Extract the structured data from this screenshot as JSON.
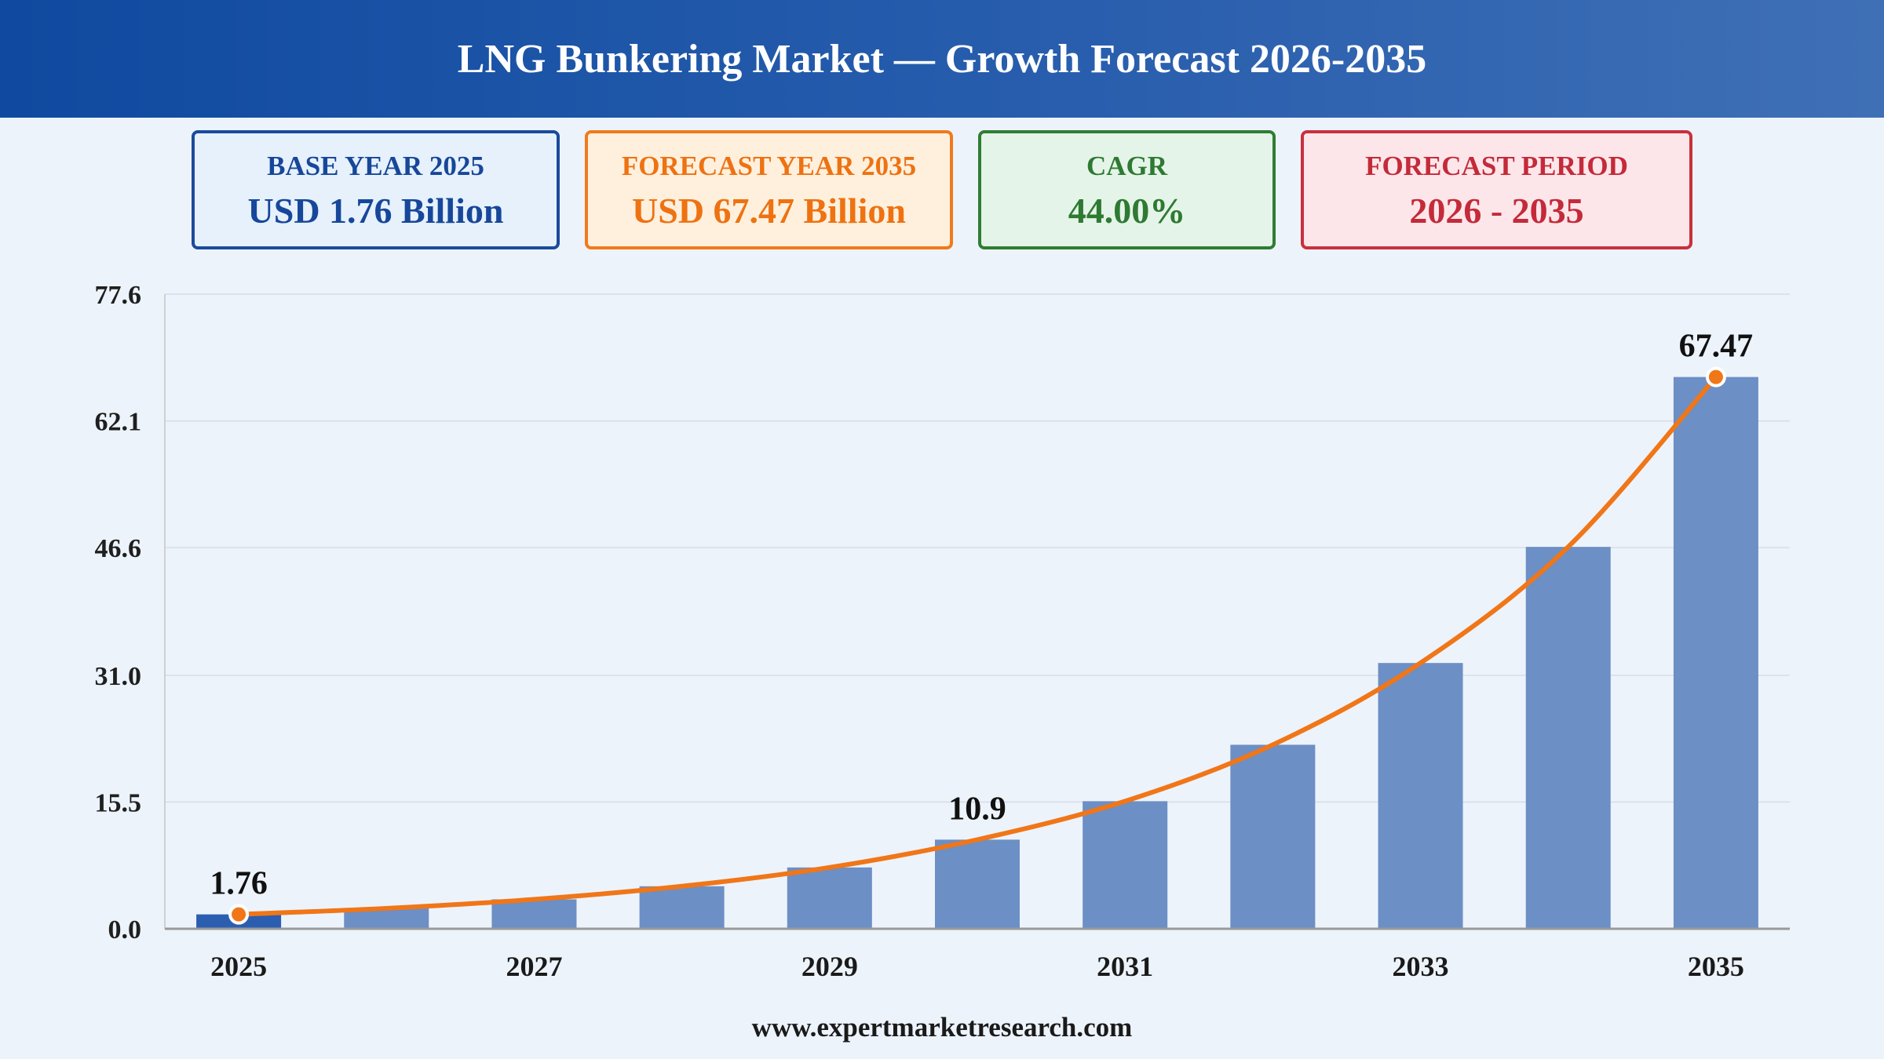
{
  "header": {
    "title": "LNG Bunkering Market — Growth Forecast 2026-2035"
  },
  "cards": {
    "base": {
      "label": "BASE YEAR 2025",
      "value": "USD 1.76 Billion"
    },
    "forecast": {
      "label": "FORECAST YEAR 2035",
      "value": "USD 67.47 Billion"
    },
    "cagr": {
      "label": "CAGR",
      "value": "44.00%"
    },
    "period": {
      "label": "FORECAST PERIOD",
      "value": "2026 - 2035"
    }
  },
  "colors": {
    "bar": "#6c8fc5",
    "bar_base": "#2b5eb0",
    "line": "#f07618",
    "grid": "#d5dde8",
    "axis": "#9a9a9a"
  },
  "chart_data": {
    "type": "bar",
    "categories": [
      "2025",
      "2026",
      "2027",
      "2028",
      "2029",
      "2030",
      "2031",
      "2032",
      "2033",
      "2034",
      "2035"
    ],
    "series": [
      {
        "values": [
          1.76,
          2.5,
          3.6,
          5.2,
          7.5,
          10.9,
          15.6,
          22.5,
          32.5,
          46.7,
          67.47
        ]
      }
    ],
    "x_tick_labels": [
      "2025",
      "",
      "2027",
      "",
      "2029",
      "",
      "2031",
      "",
      "2033",
      "",
      "2035"
    ],
    "y_ticks": [
      "0.0",
      "15.5",
      "31.0",
      "46.6",
      "62.1",
      "77.6"
    ],
    "ylim": [
      0,
      77.6
    ],
    "data_labels": [
      {
        "category": "2025",
        "text": "1.76"
      },
      {
        "category": "2030",
        "text": "10.9"
      },
      {
        "category": "2035",
        "text": "67.47"
      }
    ],
    "line_overlay": true,
    "grid": true,
    "legend": "none",
    "title": "",
    "xlabel": "",
    "ylabel": ""
  },
  "footer": {
    "source": "www.expertmarketresearch.com"
  }
}
